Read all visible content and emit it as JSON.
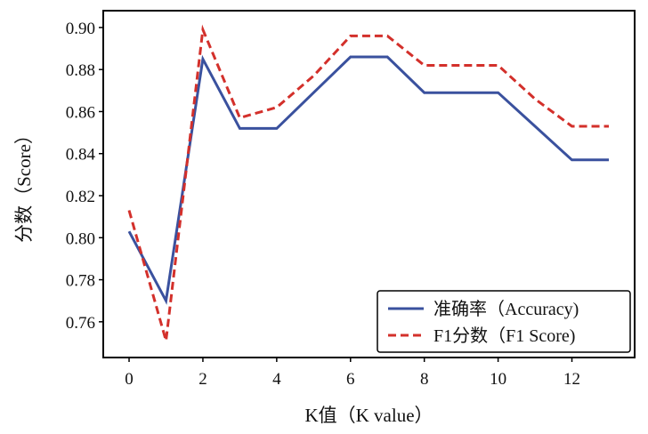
{
  "chart_data": {
    "type": "line",
    "xlabel": "K值（K value）",
    "ylabel": "分数（Score）",
    "x": [
      0,
      1,
      2,
      3,
      4,
      5,
      6,
      7,
      8,
      9,
      10,
      11,
      12,
      13
    ],
    "xlim": [
      -0.7,
      13.7
    ],
    "ylim": [
      0.743,
      0.908
    ],
    "xticks": [
      0,
      2,
      4,
      6,
      8,
      10,
      12
    ],
    "xtick_labels": [
      "0",
      "2",
      "4",
      "6",
      "8",
      "10",
      "12"
    ],
    "yticks": [
      0.76,
      0.78,
      0.8,
      0.82,
      0.84,
      0.86,
      0.88,
      0.9
    ],
    "ytick_labels": [
      "0.76",
      "0.78",
      "0.80",
      "0.82",
      "0.84",
      "0.86",
      "0.88",
      "0.90"
    ],
    "grid": false,
    "legend_position": "bottom-right",
    "series": [
      {
        "name": "准确率（Accuracy)",
        "color": "#3a519e",
        "style": "solid",
        "values": [
          0.803,
          0.77,
          0.885,
          0.852,
          0.852,
          0.869,
          0.886,
          0.886,
          0.869,
          0.869,
          0.869,
          0.853,
          0.837,
          0.837
        ]
      },
      {
        "name": "F1分数（F1 Score)",
        "color": "#d3302b",
        "style": "dashed",
        "values": [
          0.813,
          0.751,
          0.899,
          0.857,
          0.862,
          0.877,
          0.896,
          0.896,
          0.882,
          0.882,
          0.882,
          0.866,
          0.853,
          0.853
        ]
      }
    ]
  }
}
